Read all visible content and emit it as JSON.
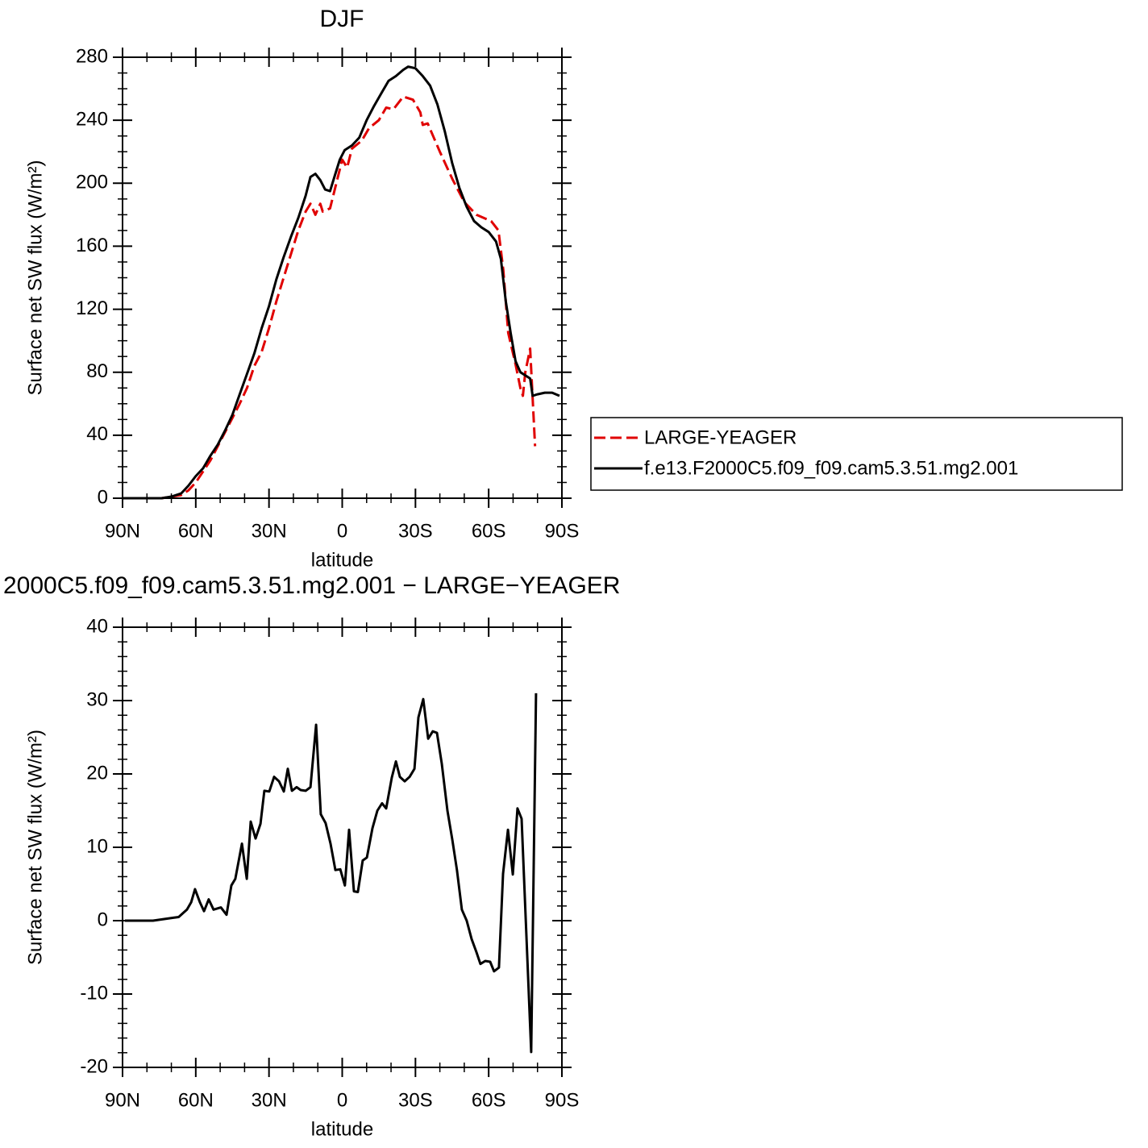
{
  "chart_data": [
    {
      "type": "line",
      "title": "DJF",
      "xlabel": "latitude",
      "ylabel": "Surface net SW flux (W/m²)",
      "xlim": [
        90,
        -90
      ],
      "xticks": [
        {
          "value": 90,
          "label": "90N"
        },
        {
          "value": 60,
          "label": "60N"
        },
        {
          "value": 30,
          "label": "30N"
        },
        0,
        {
          "value": -30,
          "label": "30S"
        },
        {
          "value": -60,
          "label": "60S"
        },
        {
          "value": -90,
          "label": "90S"
        }
      ],
      "ylim": [
        0,
        280
      ],
      "yticks": [
        0,
        40,
        80,
        120,
        160,
        200,
        240,
        280
      ],
      "legend": "right",
      "series": [
        {
          "name": "LARGE-YEAGER",
          "color": "#e00000",
          "style": "dashed",
          "x": [
            90,
            80,
            74,
            70,
            66,
            63,
            60,
            57,
            54,
            51,
            48,
            45,
            42,
            39,
            36,
            33,
            30,
            27,
            24,
            21,
            18,
            15,
            13,
            11,
            9,
            8,
            5,
            0,
            -2,
            -4,
            -8,
            -11,
            -15,
            -18,
            -21,
            -25,
            -29,
            -32,
            -33,
            -35,
            -40,
            -45,
            -50,
            -55,
            -61,
            -64,
            -66,
            -68,
            -71,
            -73,
            -74,
            -75,
            -77,
            -79
          ],
          "values": [
            0,
            0,
            0,
            1,
            2,
            5,
            10,
            17,
            24,
            33,
            42,
            51,
            60,
            70,
            84,
            93,
            108,
            125,
            140,
            155,
            170,
            182,
            187,
            180,
            187,
            182,
            184,
            215,
            210,
            222,
            227,
            235,
            240,
            248,
            247,
            255,
            253,
            245,
            237,
            238,
            220,
            203,
            188,
            180,
            176,
            170,
            145,
            105,
            85,
            70,
            65,
            80,
            95,
            33
          ]
        },
        {
          "name": "f.e13.F2000C5.f09_f09.cam5.3.51.mg2.001",
          "color": "#000000",
          "style": "solid",
          "x": [
            90,
            86,
            82,
            78,
            74,
            72,
            70,
            66,
            63,
            60,
            57,
            54,
            51,
            48,
            45,
            42,
            39,
            36,
            33,
            30,
            27,
            24,
            21,
            18,
            15,
            13,
            11,
            9,
            7,
            5,
            3,
            1,
            -1,
            -4,
            -7,
            -10,
            -13,
            -16,
            -19,
            -22,
            -25,
            -27,
            -30,
            -33,
            -36,
            -39,
            -42,
            -45,
            -48,
            -51,
            -54,
            -57,
            -60,
            -63,
            -65,
            -67,
            -69,
            -71,
            -73,
            -75,
            -77,
            -78,
            -80,
            -83,
            -86,
            -89
          ],
          "values": [
            0,
            0,
            0,
            0,
            0,
            0.5,
            1,
            3,
            8,
            14,
            19,
            27,
            34,
            43,
            53,
            66,
            79,
            92,
            108,
            122,
            139,
            153,
            166,
            178,
            192,
            204,
            206,
            202,
            196,
            195,
            205,
            215,
            221,
            224,
            229,
            240,
            249,
            257,
            265,
            268,
            272,
            274,
            273,
            268,
            262,
            250,
            233,
            213,
            197,
            185,
            176,
            172,
            169,
            163,
            152,
            125,
            105,
            87,
            80,
            78,
            76,
            65,
            66,
            67,
            67,
            65
          ]
        }
      ]
    },
    {
      "type": "line",
      "title": "2000C5.f09_f09.cam5.3.51.mg2.001 − LARGE−YEAGER",
      "xlabel": "latitude",
      "ylabel": "Surface net SW flux (W/m²)",
      "xlim": [
        90,
        -90
      ],
      "xticks": [
        {
          "value": 90,
          "label": "90N"
        },
        {
          "value": 60,
          "label": "60N"
        },
        {
          "value": 30,
          "label": "30N"
        },
        0,
        {
          "value": -30,
          "label": "30S"
        },
        {
          "value": -60,
          "label": "60S"
        },
        {
          "value": -90,
          "label": "90S"
        }
      ],
      "ylim": [
        -20,
        40
      ],
      "yticks": [
        -20,
        -10,
        0,
        10,
        20,
        30,
        40
      ],
      "color": "#000000",
      "x": [
        89,
        77.5,
        69.2,
        67,
        63.6,
        61.9,
        60.3,
        58.3,
        56.6,
        54.7,
        52.7,
        49.7,
        47.4,
        45.4,
        43.8,
        41.1,
        39.1,
        37.5,
        35.5,
        33.5,
        31.9,
        29.9,
        27.9,
        25.9,
        23.9,
        22.3,
        20.6,
        18.7,
        17,
        15,
        13,
        10.7,
        8.8,
        6.8,
        4.8,
        2.8,
        0.8,
        -1.1,
        -2.8,
        -4.8,
        -6.4,
        -8.4,
        -10.1,
        -12.4,
        -14.4,
        -16.3,
        -18,
        -20.3,
        -22,
        -23.6,
        -25.6,
        -27.6,
        -29.6,
        -31.2,
        -33.2,
        -35.2,
        -37.1,
        -38.8,
        -40.8,
        -43.1,
        -45.1,
        -47,
        -49,
        -51,
        -53,
        -55,
        -56.6,
        -58.6,
        -60.6,
        -62.2,
        -64.2,
        -65.9,
        -67.9,
        -69.9,
        -71.8,
        -73.5,
        -77.4,
        -79.4
      ],
      "values": [
        0,
        0,
        0.4,
        0.5,
        1.5,
        2.5,
        4.3,
        2.5,
        1.3,
        2.9,
        1.5,
        1.8,
        0.8,
        4.8,
        5.7,
        10.5,
        5.7,
        13.5,
        11.2,
        13.2,
        17.7,
        17.6,
        19.6,
        19,
        17.6,
        20.7,
        17.7,
        18.2,
        17.8,
        17.7,
        18.2,
        26.7,
        14.5,
        13.3,
        10.5,
        6.9,
        7,
        4.8,
        12.4,
        4,
        3.9,
        8.2,
        8.6,
        12.6,
        15,
        16,
        15.3,
        19.5,
        21.7,
        19.6,
        19,
        19.6,
        20.7,
        27.7,
        30.2,
        24.8,
        25.8,
        25.6,
        21.4,
        15,
        11,
        6.9,
        1.5,
        0,
        -2.5,
        -4.3,
        -5.9,
        -5.5,
        -5.6,
        -6.9,
        -6.4,
        6.4,
        12.4,
        6.3,
        15.3,
        13.9,
        -17.9,
        31
      ]
    }
  ]
}
